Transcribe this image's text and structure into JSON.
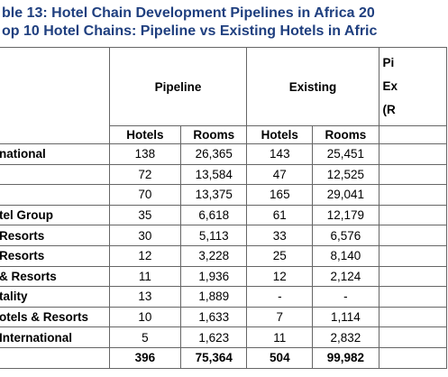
{
  "header": {
    "title_line1": "ble 13: Hotel Chain Development Pipelines in Africa 20",
    "title_line2": "op 10 Hotel Chains: Pipeline vs Existing Hotels in Afric"
  },
  "table": {
    "group_headers": [
      "Pipeline",
      "Existing"
    ],
    "last_header": [
      "Pi",
      "Ex",
      "(R"
    ],
    "sub_headers": [
      "Hotels",
      "Rooms",
      "Hotels",
      "Rooms"
    ],
    "rows": [
      [
        "national",
        "138",
        "26,365",
        "143",
        "25,451"
      ],
      [
        null,
        "72",
        "13,584",
        "47",
        "12,525"
      ],
      [
        null,
        "70",
        "13,375",
        "165",
        "29,041"
      ],
      [
        "tel Group",
        "35",
        "6,618",
        "61",
        "12,179"
      ],
      [
        " Resorts",
        "30",
        "5,113",
        "33",
        "6,576"
      ],
      [
        "Resorts",
        "12",
        "3,228",
        "25",
        "8,140"
      ],
      [
        "& Resorts",
        "11",
        "1,936",
        "12",
        "2,124"
      ],
      [
        "tality",
        "13",
        "1,889",
        "-",
        "-"
      ],
      [
        "otels & Resorts",
        "10",
        "1,633",
        "7",
        "1,114"
      ],
      [
        "International",
        "5",
        "1,623",
        "11",
        "2,832"
      ]
    ],
    "totals": [
      "396",
      "75,364",
      "504",
      "99,982"
    ]
  }
}
